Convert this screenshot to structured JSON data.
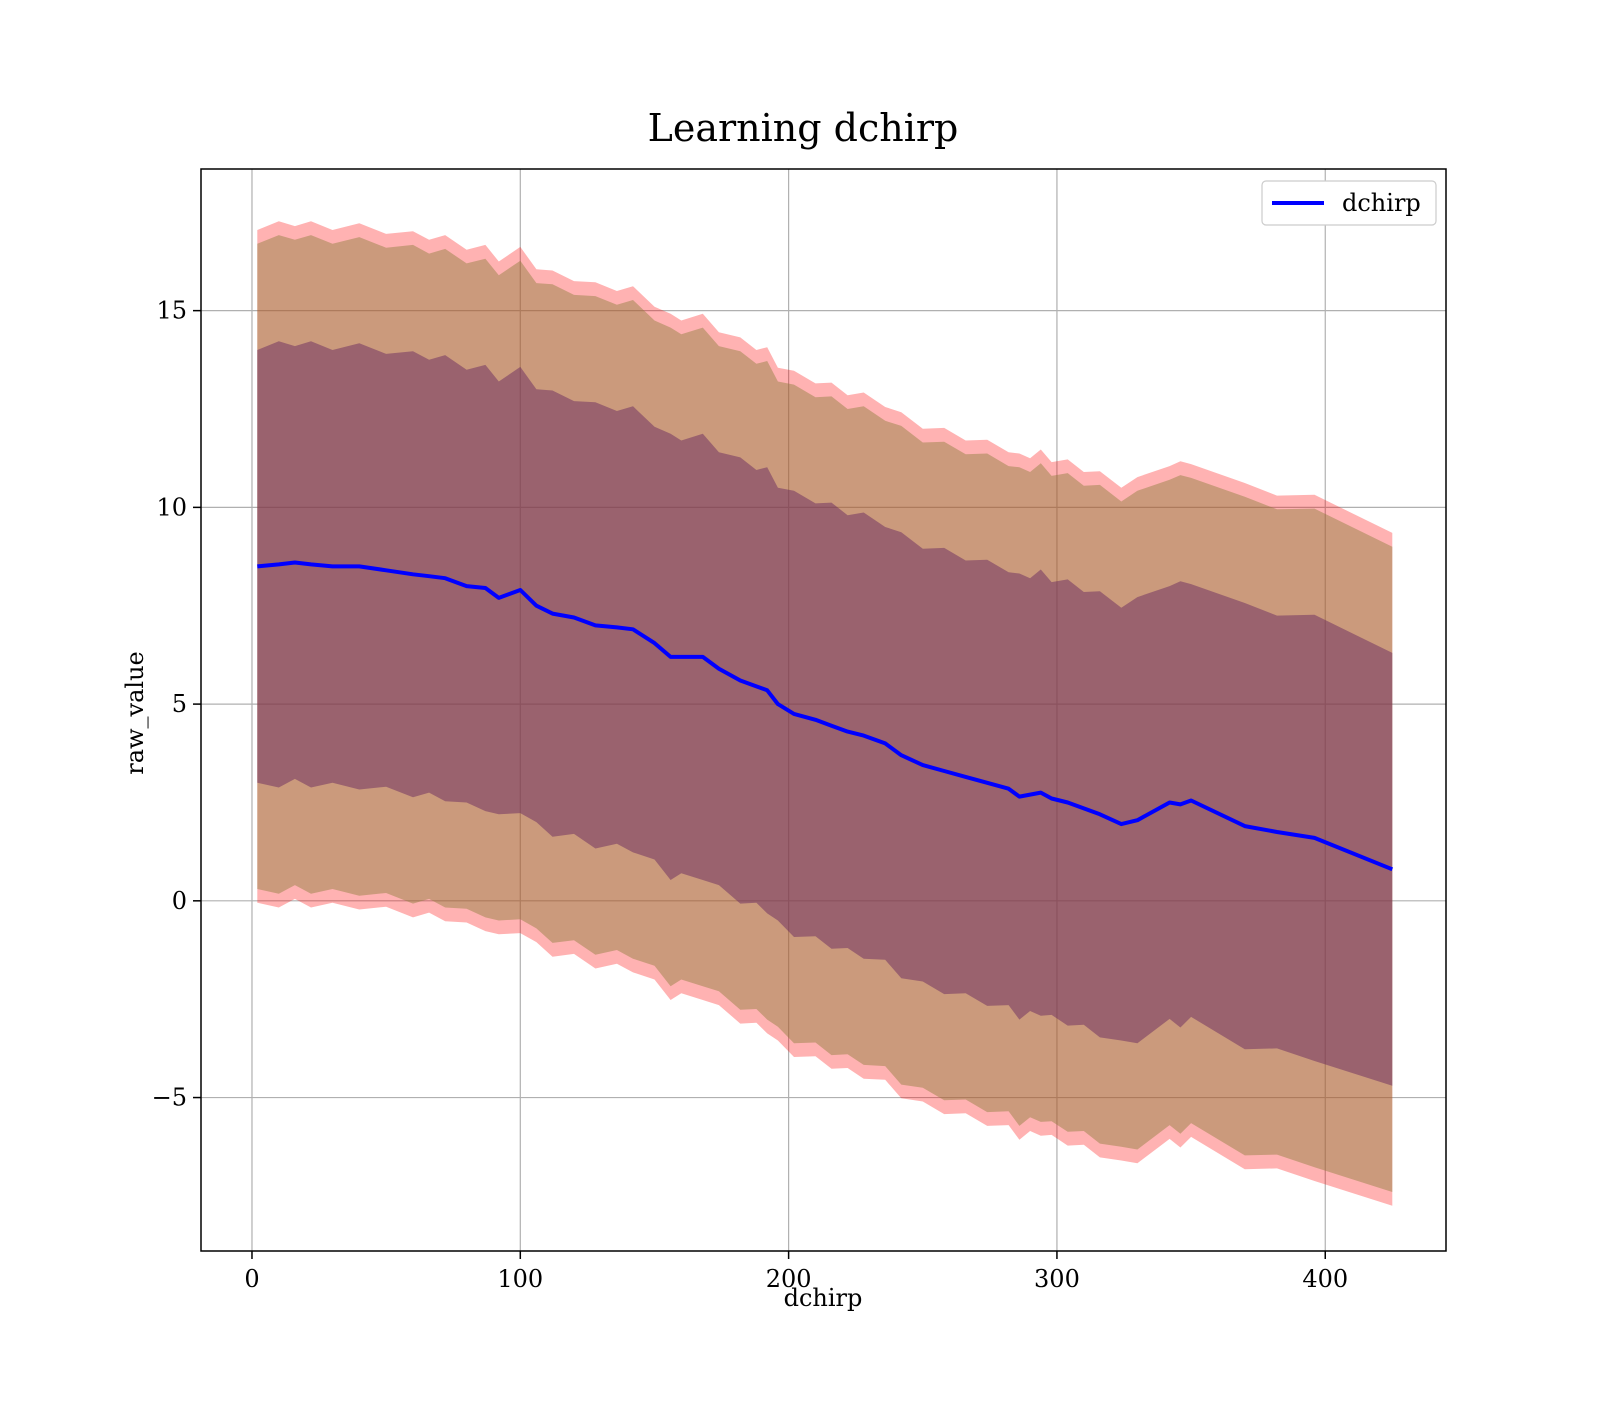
{
  "chart_data": {
    "type": "line",
    "title": "Learning dchirp",
    "xlabel": "dchirp",
    "ylabel": "raw_value",
    "xlim": [
      -19,
      445
    ],
    "ylim": [
      -8.9,
      18.6
    ],
    "x_ticks": [
      0,
      100,
      200,
      300,
      400
    ],
    "y_ticks": [
      -5,
      0,
      5,
      10,
      15
    ],
    "x_tick_labels": [
      "0",
      "100",
      "200",
      "300",
      "400"
    ],
    "y_tick_labels": [
      "−5",
      "0",
      "5",
      "10",
      "15"
    ],
    "grid": true,
    "legend": {
      "placement": "top-right",
      "entries": [
        "dchirp"
      ]
    },
    "series": [
      {
        "name": "dchirp",
        "color": "#0000ff",
        "x": [
          2,
          10,
          16,
          22,
          30,
          40,
          50,
          60,
          66,
          72,
          80,
          87,
          92,
          100,
          106,
          112,
          120,
          128,
          136,
          142,
          150,
          156,
          160,
          168,
          174,
          182,
          188,
          192,
          196,
          202,
          210,
          216,
          222,
          228,
          236,
          242,
          250,
          258,
          266,
          274,
          282,
          286,
          290,
          294,
          298,
          304,
          310,
          316,
          324,
          330,
          342,
          346,
          350,
          370,
          382,
          396,
          425
        ],
        "mean": [
          8.5,
          8.55,
          8.6,
          8.55,
          8.5,
          8.5,
          8.4,
          8.3,
          8.25,
          8.2,
          8.0,
          7.95,
          7.7,
          7.9,
          7.5,
          7.3,
          7.2,
          7.0,
          6.95,
          6.9,
          6.55,
          6.2,
          6.2,
          6.2,
          5.9,
          5.6,
          5.45,
          5.35,
          5.0,
          4.75,
          4.6,
          4.45,
          4.3,
          4.2,
          4.0,
          3.7,
          3.45,
          3.3,
          3.15,
          3.0,
          2.85,
          2.65,
          2.7,
          2.75,
          2.6,
          2.5,
          2.35,
          2.2,
          1.95,
          2.05,
          2.5,
          2.45,
          2.55,
          1.9,
          1.75,
          1.6,
          0.8
        ]
      }
    ],
    "bands": [
      {
        "color": "#ff0000",
        "opacity": 0.3,
        "offsets": [
          8.6,
          -8.6
        ]
      },
      {
        "color": "#8b7d3a",
        "opacity": 0.45,
        "offsets": [
          8.25,
          -8.25
        ]
      },
      {
        "color": "#6a2a60",
        "opacity": 0.5,
        "offsets": [
          5.55,
          -5.55
        ]
      }
    ]
  }
}
